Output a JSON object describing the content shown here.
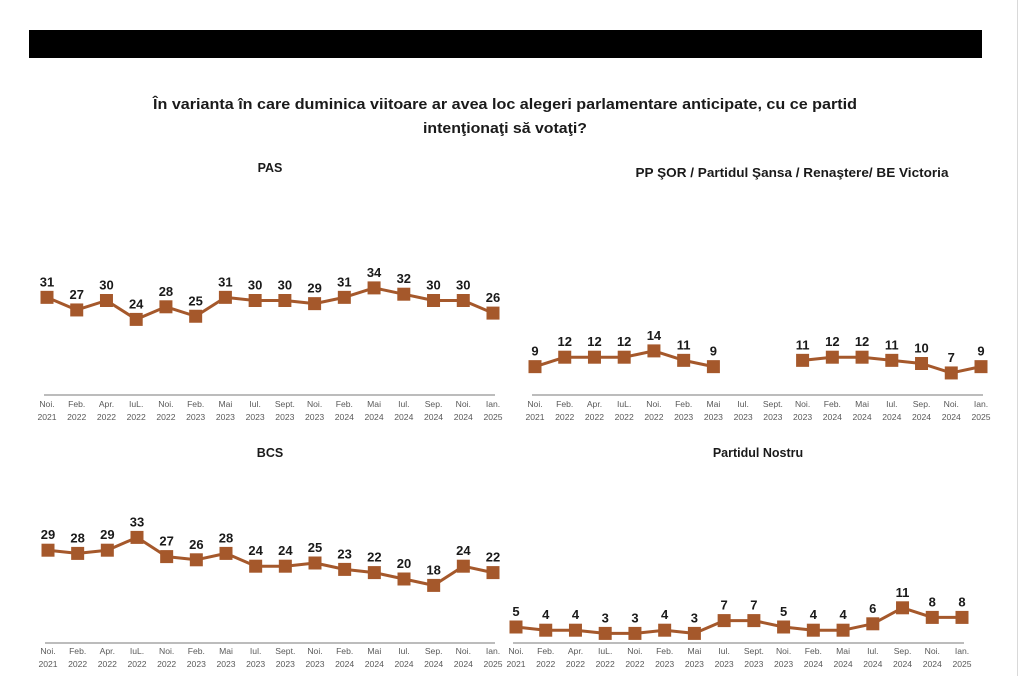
{
  "page": {
    "question_lines": [
      "În varianta în care duminica viitoare ar avea loc alegeri parlamentare anticipate, cu ce partid",
      "intenţionaţi să votaţi?"
    ],
    "series_color": "#a5582b",
    "axis_color": "#a6a6a6"
  },
  "chart_data": [
    {
      "type": "line",
      "title": "PAS",
      "xlabel": "",
      "ylabel": "",
      "grid": false,
      "categories": [
        [
          "Noi.",
          "2021"
        ],
        [
          "Feb.",
          "2022"
        ],
        [
          "Apr.",
          "2022"
        ],
        [
          "IuL.",
          "2022"
        ],
        [
          "Noi.",
          "2022"
        ],
        [
          "Feb.",
          "2023"
        ],
        [
          "Mai",
          "2023"
        ],
        [
          "Iul.",
          "2023"
        ],
        [
          "Sept.",
          "2023"
        ],
        [
          "Noi.",
          "2023"
        ],
        [
          "Feb.",
          "2024"
        ],
        [
          "Mai",
          "2024"
        ],
        [
          "Iul.",
          "2024"
        ],
        [
          "Sep.",
          "2024"
        ],
        [
          "Noi.",
          "2024"
        ],
        [
          "Ian.",
          "2025"
        ]
      ],
      "values": [
        31,
        27,
        30,
        24,
        28,
        25,
        31,
        30,
        30,
        29,
        31,
        34,
        32,
        30,
        30,
        26
      ]
    },
    {
      "type": "line",
      "title": "PP ŞOR / Partidul Şansa / Renaştere/ BE Victoria",
      "xlabel": "",
      "ylabel": "",
      "grid": false,
      "categories": [
        [
          "Noi.",
          "2021"
        ],
        [
          "Feb.",
          "2022"
        ],
        [
          "Apr.",
          "2022"
        ],
        [
          "IuL.",
          "2022"
        ],
        [
          "Noi.",
          "2022"
        ],
        [
          "Feb.",
          "2023"
        ],
        [
          "Mai",
          "2023"
        ],
        [
          "Iul.",
          "2023"
        ],
        [
          "Sept.",
          "2023"
        ],
        [
          "Noi.",
          "2023"
        ],
        [
          "Feb.",
          "2024"
        ],
        [
          "Mai",
          "2024"
        ],
        [
          "Iul.",
          "2024"
        ],
        [
          "Sep.",
          "2024"
        ],
        [
          "Noi.",
          "2024"
        ],
        [
          "Ian.",
          "2025"
        ]
      ],
      "values": [
        9,
        12,
        12,
        12,
        14,
        11,
        9,
        null,
        null,
        11,
        12,
        12,
        11,
        10,
        7,
        9
      ]
    },
    {
      "type": "line",
      "title": "BCS",
      "xlabel": "",
      "ylabel": "",
      "grid": false,
      "categories": [
        [
          "Noi.",
          "2021"
        ],
        [
          "Feb.",
          "2022"
        ],
        [
          "Apr.",
          "2022"
        ],
        [
          "IuL.",
          "2022"
        ],
        [
          "Noi.",
          "2022"
        ],
        [
          "Feb.",
          "2023"
        ],
        [
          "Mai",
          "2023"
        ],
        [
          "Iul.",
          "2023"
        ],
        [
          "Sept.",
          "2023"
        ],
        [
          "Noi.",
          "2023"
        ],
        [
          "Feb.",
          "2024"
        ],
        [
          "Mai",
          "2024"
        ],
        [
          "Iul.",
          "2024"
        ],
        [
          "Sep.",
          "2024"
        ],
        [
          "Noi.",
          "2024"
        ],
        [
          "Ian.",
          "2025"
        ]
      ],
      "values": [
        29,
        28,
        29,
        33,
        27,
        26,
        28,
        24,
        24,
        25,
        23,
        22,
        20,
        18,
        24,
        22
      ]
    },
    {
      "type": "line",
      "title": "Partidul Nostru",
      "xlabel": "",
      "ylabel": "",
      "grid": false,
      "categories": [
        [
          "Noi.",
          "2021"
        ],
        [
          "Feb.",
          "2022"
        ],
        [
          "Apr.",
          "2022"
        ],
        [
          "IuL.",
          "2022"
        ],
        [
          "Noi.",
          "2022"
        ],
        [
          "Feb.",
          "2023"
        ],
        [
          "Mai",
          "2023"
        ],
        [
          "Iul.",
          "2023"
        ],
        [
          "Sept.",
          "2023"
        ],
        [
          "Noi.",
          "2023"
        ],
        [
          "Feb.",
          "2024"
        ],
        [
          "Mai",
          "2024"
        ],
        [
          "Iul.",
          "2024"
        ],
        [
          "Sep.",
          "2024"
        ],
        [
          "Noi.",
          "2024"
        ],
        [
          "Ian.",
          "2025"
        ]
      ],
      "values": [
        5,
        4,
        4,
        3,
        3,
        4,
        3,
        7,
        7,
        5,
        4,
        4,
        6,
        11,
        8,
        8
      ]
    }
  ]
}
